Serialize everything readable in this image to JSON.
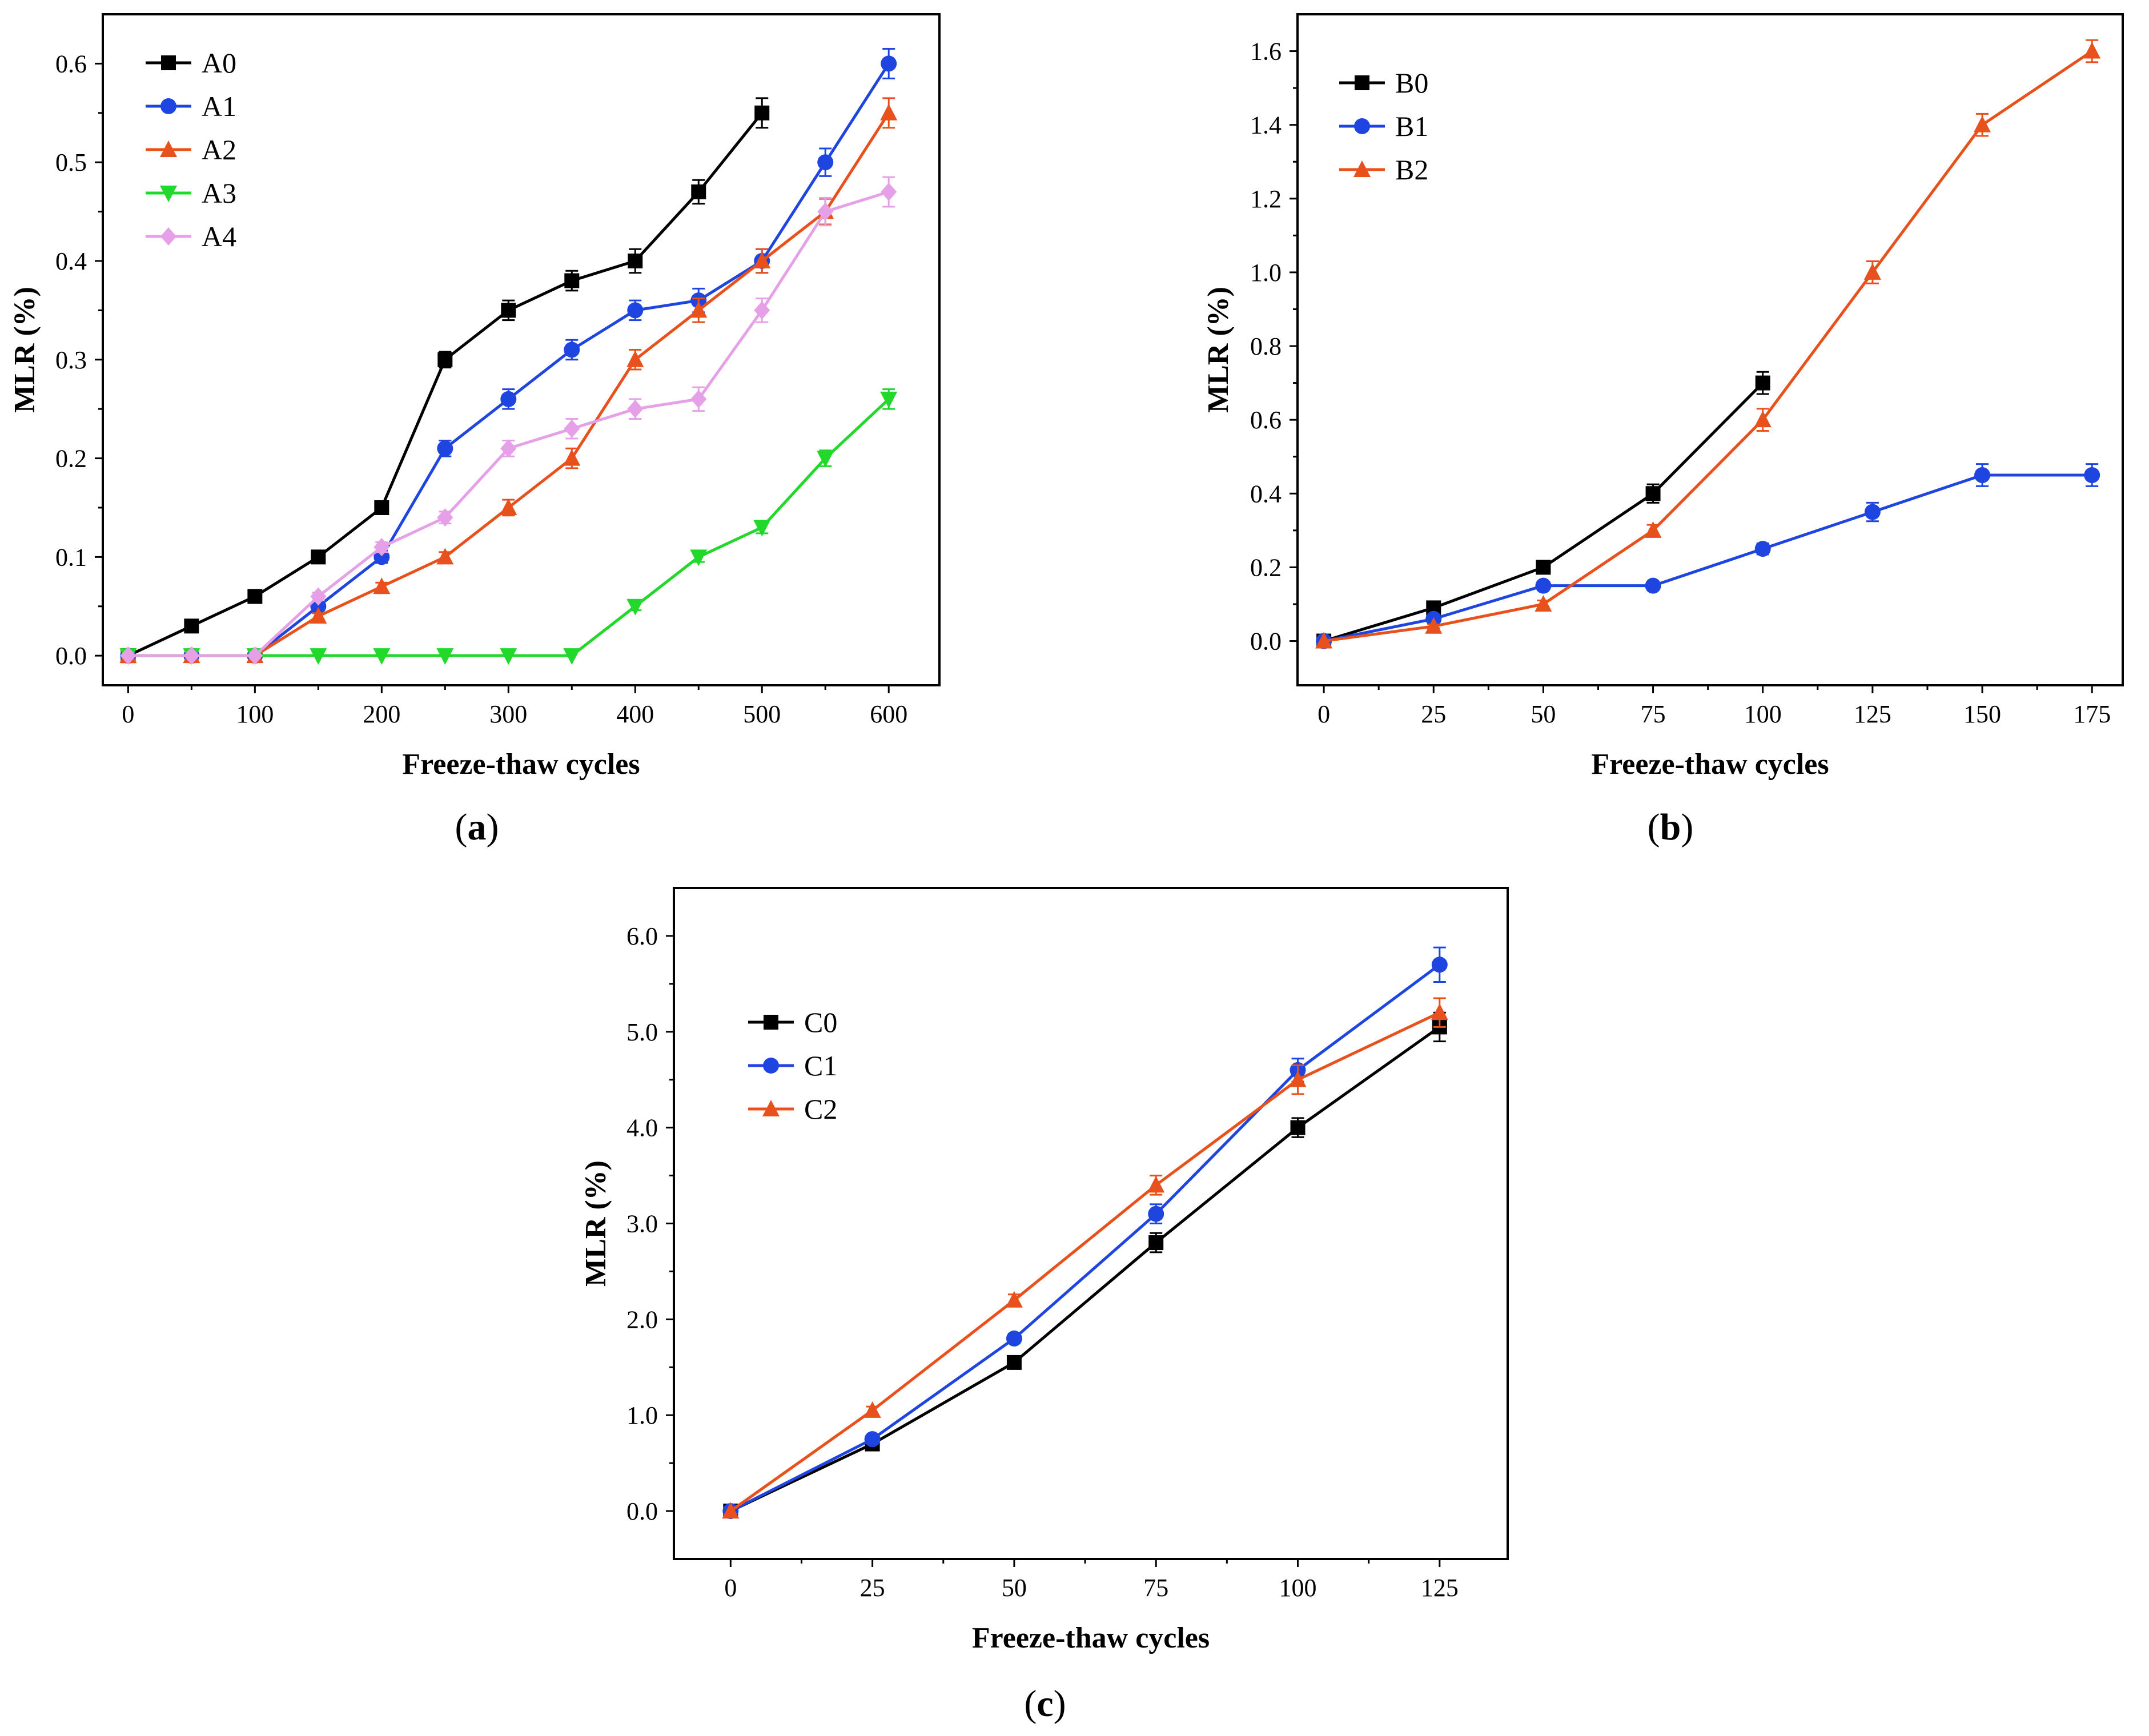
{
  "chart_data": [
    {
      "id": "a",
      "caption": "a",
      "type": "line",
      "xlabel": "Freeze-thaw cycles",
      "ylabel": "MLR (%)",
      "xlim": [
        -20,
        640
      ],
      "ylim": [
        -0.03,
        0.65
      ],
      "xticks": [
        0,
        100,
        200,
        300,
        400,
        500,
        600
      ],
      "xtick_labels": [
        "0",
        "100",
        "200",
        "300",
        "400",
        "500",
        "600"
      ],
      "yticks": [
        0.0,
        0.1,
        0.2,
        0.3,
        0.4,
        0.5,
        0.6
      ],
      "ytick_labels": [
        "0.0",
        "0.1",
        "0.2",
        "0.3",
        "0.4",
        "0.5",
        "0.6"
      ],
      "legend_position": "top-left",
      "series": [
        {
          "name": "A0",
          "color": "#000000",
          "marker": "square",
          "x": [
            0,
            50,
            100,
            150,
            200,
            250,
            300,
            350,
            400,
            450,
            500
          ],
          "y": [
            0,
            0.03,
            0.06,
            0.1,
            0.15,
            0.3,
            0.35,
            0.38,
            0.4,
            0.47,
            0.55
          ],
          "err": [
            0,
            0.003,
            0.003,
            0.004,
            0.006,
            0.008,
            0.01,
            0.01,
            0.012,
            0.012,
            0.015
          ]
        },
        {
          "name": "A1",
          "color": "#1f45e0",
          "marker": "circle",
          "x": [
            0,
            50,
            100,
            150,
            200,
            250,
            300,
            350,
            400,
            450,
            500,
            550,
            600
          ],
          "y": [
            0,
            0,
            0,
            0.05,
            0.1,
            0.21,
            0.26,
            0.31,
            0.35,
            0.36,
            0.4,
            0.5,
            0.6
          ],
          "err": [
            0,
            0,
            0,
            0.004,
            0.006,
            0.008,
            0.01,
            0.01,
            0.01,
            0.012,
            0.012,
            0.014,
            0.015
          ]
        },
        {
          "name": "A2",
          "color": "#e8501c",
          "marker": "triangle-up",
          "x": [
            0,
            50,
            100,
            150,
            200,
            250,
            300,
            350,
            400,
            450,
            500,
            550,
            600
          ],
          "y": [
            0,
            0,
            0,
            0.04,
            0.07,
            0.1,
            0.15,
            0.2,
            0.3,
            0.35,
            0.4,
            0.45,
            0.55
          ],
          "err": [
            0,
            0,
            0,
            0.003,
            0.004,
            0.005,
            0.008,
            0.01,
            0.01,
            0.012,
            0.012,
            0.013,
            0.015
          ]
        },
        {
          "name": "A3",
          "color": "#22d82a",
          "marker": "triangle-down",
          "x": [
            0,
            50,
            100,
            150,
            200,
            250,
            300,
            350,
            400,
            450,
            500,
            550,
            600
          ],
          "y": [
            0,
            0,
            0,
            0,
            0,
            0,
            0,
            0,
            0.05,
            0.1,
            0.13,
            0.2,
            0.26
          ],
          "err": [
            0,
            0,
            0,
            0,
            0,
            0,
            0,
            0,
            0.004,
            0.005,
            0.006,
            0.008,
            0.01
          ]
        },
        {
          "name": "A4",
          "color": "#e6a0e8",
          "marker": "diamond",
          "x": [
            0,
            50,
            100,
            150,
            200,
            250,
            300,
            350,
            400,
            450,
            500,
            550,
            600
          ],
          "y": [
            0,
            0,
            0,
            0.06,
            0.11,
            0.14,
            0.21,
            0.23,
            0.25,
            0.26,
            0.35,
            0.45,
            0.47
          ],
          "err": [
            0,
            0,
            0,
            0.004,
            0.005,
            0.006,
            0.008,
            0.01,
            0.01,
            0.012,
            0.012,
            0.014,
            0.015
          ]
        }
      ]
    },
    {
      "id": "b",
      "caption": "b",
      "type": "line",
      "xlabel": "Freeze-thaw cycles",
      "ylabel": "MLR (%)",
      "xlim": [
        -6,
        182
      ],
      "ylim": [
        -0.12,
        1.7
      ],
      "xticks": [
        0,
        25,
        50,
        75,
        100,
        125,
        150,
        175
      ],
      "xtick_labels": [
        "0",
        "25",
        "50",
        "75",
        "100",
        "125",
        "150",
        "175"
      ],
      "yticks": [
        0.0,
        0.2,
        0.4,
        0.6,
        0.8,
        1.0,
        1.2,
        1.4,
        1.6
      ],
      "ytick_labels": [
        "0.0",
        "0.2",
        "0.4",
        "0.6",
        "0.8",
        "1.0",
        "1.2",
        "1.4",
        "1.6"
      ],
      "legend_position": "top-left",
      "series": [
        {
          "name": "B0",
          "color": "#000000",
          "marker": "square",
          "x": [
            0,
            25,
            50,
            75,
            100
          ],
          "y": [
            0,
            0.09,
            0.2,
            0.4,
            0.7
          ],
          "err": [
            0,
            0.01,
            0.015,
            0.025,
            0.03
          ]
        },
        {
          "name": "B1",
          "color": "#1f45e0",
          "marker": "circle",
          "x": [
            0,
            25,
            50,
            75,
            100,
            125,
            150,
            175
          ],
          "y": [
            0,
            0.06,
            0.15,
            0.15,
            0.25,
            0.35,
            0.45,
            0.45
          ],
          "err": [
            0,
            0.01,
            0.01,
            0.01,
            0.015,
            0.025,
            0.03,
            0.03
          ]
        },
        {
          "name": "B2",
          "color": "#e8501c",
          "marker": "triangle-up",
          "x": [
            0,
            25,
            50,
            75,
            100,
            125,
            150,
            175
          ],
          "y": [
            0,
            0.04,
            0.1,
            0.3,
            0.6,
            1.0,
            1.4,
            1.6
          ],
          "err": [
            0,
            0.005,
            0.01,
            0.015,
            0.03,
            0.03,
            0.03,
            0.03
          ]
        }
      ]
    },
    {
      "id": "c",
      "caption": "c",
      "type": "line",
      "xlabel": "Freeze-thaw cycles",
      "ylabel": "MLR (%)",
      "xlim": [
        -10,
        137
      ],
      "ylim": [
        -0.5,
        6.5
      ],
      "xticks": [
        0,
        25,
        50,
        75,
        100,
        125
      ],
      "xtick_labels": [
        "0",
        "25",
        "50",
        "75",
        "100",
        "125"
      ],
      "yticks": [
        0,
        1,
        2,
        3,
        4,
        5,
        6
      ],
      "ytick_labels": [
        "0.0",
        "1.0",
        "2.0",
        "3.0",
        "4.0",
        "5.0",
        "6.0"
      ],
      "legend_position": "upper-left",
      "series": [
        {
          "name": "C0",
          "color": "#000000",
          "marker": "square",
          "x": [
            0,
            25,
            50,
            75,
            100,
            125
          ],
          "y": [
            0,
            0.7,
            1.55,
            2.8,
            4.0,
            5.05
          ],
          "err": [
            0,
            0.03,
            0.05,
            0.1,
            0.1,
            0.15
          ]
        },
        {
          "name": "C1",
          "color": "#1f45e0",
          "marker": "circle",
          "x": [
            0,
            25,
            50,
            75,
            100,
            125
          ],
          "y": [
            0,
            0.75,
            1.8,
            3.1,
            4.6,
            5.7
          ],
          "err": [
            0,
            0.03,
            0.05,
            0.1,
            0.12,
            0.18
          ]
        },
        {
          "name": "C2",
          "color": "#e8501c",
          "marker": "triangle-up",
          "x": [
            0,
            25,
            50,
            75,
            100,
            125
          ],
          "y": [
            0,
            1.05,
            2.2,
            3.4,
            4.5,
            5.2
          ],
          "err": [
            0,
            0.04,
            0.06,
            0.1,
            0.15,
            0.15
          ]
        }
      ]
    }
  ]
}
